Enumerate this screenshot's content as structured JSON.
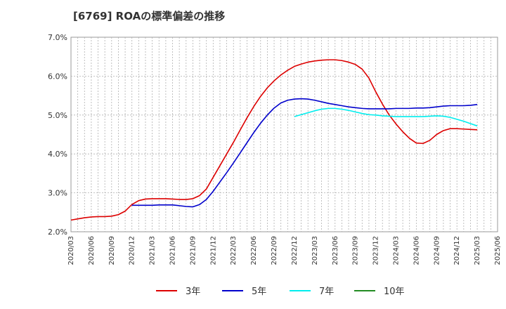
{
  "chart_data": {
    "type": "line",
    "title": "[6769]  ROAの標準偏差の推移",
    "xlabel": "",
    "ylabel": "",
    "ylim": [
      2.0,
      7.0
    ],
    "yticks": [
      "2.0%",
      "3.0%",
      "4.0%",
      "5.0%",
      "6.0%",
      "7.0%"
    ],
    "yticks_values": [
      2.0,
      3.0,
      4.0,
      5.0,
      6.0,
      7.0
    ],
    "x_tick_labels": [
      "2020/03",
      "2020/06",
      "2020/09",
      "2020/12",
      "2021/03",
      "2021/06",
      "2021/09",
      "2021/12",
      "2022/03",
      "2022/06",
      "2022/09",
      "2022/12",
      "2023/03",
      "2023/06",
      "2023/09",
      "2023/12",
      "2024/03",
      "2024/06",
      "2024/09",
      "2024/12",
      "2025/03",
      "2025/06"
    ],
    "grid": true,
    "legend_position": "bottom",
    "series": [
      {
        "name": "3年",
        "color": "#dd0000",
        "points": [
          [
            "2020/03",
            2.3
          ],
          [
            "2020/04",
            2.33
          ],
          [
            "2020/05",
            2.36
          ],
          [
            "2020/06",
            2.38
          ],
          [
            "2020/07",
            2.39
          ],
          [
            "2020/08",
            2.39
          ],
          [
            "2020/09",
            2.4
          ],
          [
            "2020/10",
            2.44
          ],
          [
            "2020/11",
            2.53
          ],
          [
            "2020/12",
            2.7
          ],
          [
            "2021/01",
            2.8
          ],
          [
            "2021/02",
            2.84
          ],
          [
            "2021/03",
            2.85
          ],
          [
            "2021/04",
            2.85
          ],
          [
            "2021/05",
            2.85
          ],
          [
            "2021/06",
            2.84
          ],
          [
            "2021/07",
            2.83
          ],
          [
            "2021/08",
            2.83
          ],
          [
            "2021/09",
            2.85
          ],
          [
            "2021/10",
            2.93
          ],
          [
            "2021/11",
            3.1
          ],
          [
            "2021/12",
            3.4
          ],
          [
            "2022/01",
            3.7
          ],
          [
            "2022/02",
            4.0
          ],
          [
            "2022/03",
            4.3
          ],
          [
            "2022/04",
            4.62
          ],
          [
            "2022/05",
            4.93
          ],
          [
            "2022/06",
            5.22
          ],
          [
            "2022/07",
            5.48
          ],
          [
            "2022/08",
            5.7
          ],
          [
            "2022/09",
            5.88
          ],
          [
            "2022/10",
            6.03
          ],
          [
            "2022/11",
            6.15
          ],
          [
            "2022/12",
            6.25
          ],
          [
            "2023/01",
            6.31
          ],
          [
            "2023/02",
            6.36
          ],
          [
            "2023/03",
            6.39
          ],
          [
            "2023/04",
            6.41
          ],
          [
            "2023/05",
            6.42
          ],
          [
            "2023/06",
            6.42
          ],
          [
            "2023/07",
            6.4
          ],
          [
            "2023/08",
            6.36
          ],
          [
            "2023/09",
            6.3
          ],
          [
            "2023/10",
            6.18
          ],
          [
            "2023/11",
            5.95
          ],
          [
            "2023/12",
            5.6
          ],
          [
            "2024/01",
            5.28
          ],
          [
            "2024/02",
            5.0
          ],
          [
            "2024/03",
            4.77
          ],
          [
            "2024/04",
            4.57
          ],
          [
            "2024/05",
            4.4
          ],
          [
            "2024/06",
            4.28
          ],
          [
            "2024/07",
            4.27
          ],
          [
            "2024/08",
            4.35
          ],
          [
            "2024/09",
            4.5
          ],
          [
            "2024/10",
            4.6
          ],
          [
            "2024/11",
            4.65
          ],
          [
            "2024/12",
            4.65
          ],
          [
            "2025/01",
            4.64
          ],
          [
            "2025/02",
            4.63
          ],
          [
            "2025/03",
            4.62
          ]
        ]
      },
      {
        "name": "5年",
        "color": "#0000cc",
        "points": [
          [
            "2020/12",
            2.68
          ],
          [
            "2021/01",
            2.68
          ],
          [
            "2021/02",
            2.68
          ],
          [
            "2021/03",
            2.68
          ],
          [
            "2021/04",
            2.69
          ],
          [
            "2021/05",
            2.69
          ],
          [
            "2021/06",
            2.69
          ],
          [
            "2021/07",
            2.67
          ],
          [
            "2021/08",
            2.65
          ],
          [
            "2021/09",
            2.64
          ],
          [
            "2021/10",
            2.7
          ],
          [
            "2021/11",
            2.83
          ],
          [
            "2021/12",
            3.04
          ],
          [
            "2022/01",
            3.28
          ],
          [
            "2022/02",
            3.52
          ],
          [
            "2022/03",
            3.77
          ],
          [
            "2022/04",
            4.03
          ],
          [
            "2022/05",
            4.29
          ],
          [
            "2022/06",
            4.55
          ],
          [
            "2022/07",
            4.79
          ],
          [
            "2022/08",
            5.0
          ],
          [
            "2022/09",
            5.18
          ],
          [
            "2022/10",
            5.31
          ],
          [
            "2022/11",
            5.38
          ],
          [
            "2022/12",
            5.41
          ],
          [
            "2023/01",
            5.42
          ],
          [
            "2023/02",
            5.41
          ],
          [
            "2023/03",
            5.38
          ],
          [
            "2023/04",
            5.34
          ],
          [
            "2023/05",
            5.3
          ],
          [
            "2023/06",
            5.27
          ],
          [
            "2023/07",
            5.24
          ],
          [
            "2023/08",
            5.21
          ],
          [
            "2023/09",
            5.19
          ],
          [
            "2023/10",
            5.17
          ],
          [
            "2023/11",
            5.16
          ],
          [
            "2023/12",
            5.16
          ],
          [
            "2024/01",
            5.16
          ],
          [
            "2024/02",
            5.16
          ],
          [
            "2024/03",
            5.17
          ],
          [
            "2024/04",
            5.17
          ],
          [
            "2024/05",
            5.17
          ],
          [
            "2024/06",
            5.18
          ],
          [
            "2024/07",
            5.18
          ],
          [
            "2024/08",
            5.19
          ],
          [
            "2024/09",
            5.21
          ],
          [
            "2024/10",
            5.23
          ],
          [
            "2024/11",
            5.24
          ],
          [
            "2024/12",
            5.24
          ],
          [
            "2025/01",
            5.24
          ],
          [
            "2025/02",
            5.25
          ],
          [
            "2025/03",
            5.27
          ]
        ]
      },
      {
        "name": "7年",
        "color": "#00eeee",
        "points": [
          [
            "2022/12",
            4.96
          ],
          [
            "2023/01",
            5.01
          ],
          [
            "2023/02",
            5.06
          ],
          [
            "2023/03",
            5.11
          ],
          [
            "2023/04",
            5.15
          ],
          [
            "2023/05",
            5.17
          ],
          [
            "2023/06",
            5.17
          ],
          [
            "2023/07",
            5.15
          ],
          [
            "2023/08",
            5.12
          ],
          [
            "2023/09",
            5.08
          ],
          [
            "2023/10",
            5.04
          ],
          [
            "2023/11",
            5.01
          ],
          [
            "2023/12",
            5.0
          ],
          [
            "2024/01",
            4.98
          ],
          [
            "2024/02",
            4.97
          ],
          [
            "2024/03",
            4.96
          ],
          [
            "2024/04",
            4.96
          ],
          [
            "2024/05",
            4.96
          ],
          [
            "2024/06",
            4.96
          ],
          [
            "2024/07",
            4.96
          ],
          [
            "2024/08",
            4.97
          ],
          [
            "2024/09",
            4.98
          ],
          [
            "2024/10",
            4.97
          ],
          [
            "2024/11",
            4.94
          ],
          [
            "2024/12",
            4.89
          ],
          [
            "2025/01",
            4.84
          ],
          [
            "2025/02",
            4.78
          ],
          [
            "2025/03",
            4.72
          ]
        ]
      },
      {
        "name": "10年",
        "color": "#228b22",
        "points": []
      }
    ]
  }
}
